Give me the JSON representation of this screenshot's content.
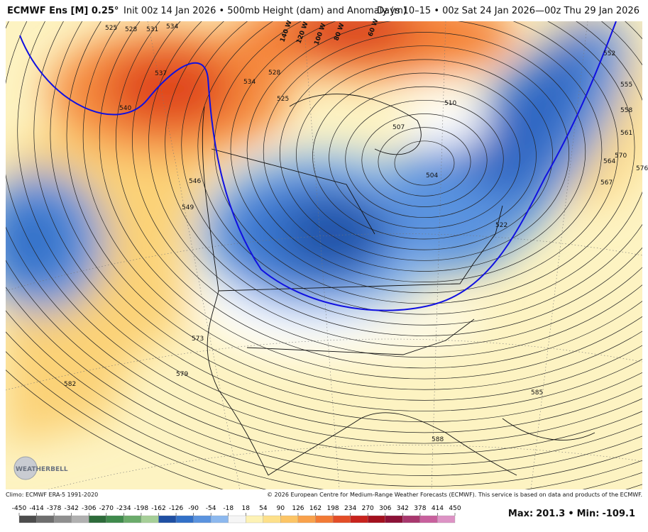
{
  "header": {
    "title": "ECMWF Ens [M] 0.25°",
    "init": "Init 00z 14 Jan 2026 • 500mb Height (dam) and Anomaly (m)",
    "valid": "Days 10–15 • 00z Sat 24 Jan 2026—00z Thu 29 Jan 2026"
  },
  "map": {
    "contour_labels": [
      525,
      528,
      531,
      534,
      537,
      540,
      546,
      549,
      534,
      528,
      525,
      552,
      555,
      558,
      561,
      564,
      567,
      570,
      576,
      510,
      507,
      504,
      522,
      573,
      582,
      579,
      585,
      588
    ],
    "longitude_labels": [
      "140 W",
      "120 W",
      "100 W",
      "80 W",
      "60 W"
    ],
    "logo": "WEATHERBELL"
  },
  "footer": {
    "climo": "Climo: ECMWF ERA-5 1991-2020",
    "copyright": "© 2026 European Centre for Medium-Range Weather Forecasts (ECMWF). This service is based on data and products of the ECMWF."
  },
  "colorbar": {
    "ticks": [
      -450,
      -414,
      -378,
      -342,
      -306,
      -270,
      -234,
      -198,
      -162,
      -126,
      -90,
      -54,
      -18,
      18,
      54,
      90,
      126,
      162,
      198,
      234,
      270,
      306,
      342,
      378,
      414,
      450
    ],
    "colors": [
      "#4d4d4d",
      "#6e6e6e",
      "#8f8f8f",
      "#b0b0b0",
      "#2d6b3a",
      "#3f8a4c",
      "#6aab6a",
      "#a6cf98",
      "#1f4fa3",
      "#3270c8",
      "#5a93df",
      "#8cb8ee",
      "#f5f5f5",
      "#fdf2b5",
      "#fde08a",
      "#fcc565",
      "#f9a14b",
      "#f27a35",
      "#e34d27",
      "#c8231d",
      "#a3101e",
      "#8c1137",
      "#a8376e",
      "#c8609d",
      "#dd93c5"
    ]
  },
  "stats": {
    "max_label": "Max:",
    "max": 201.3,
    "separator": "•",
    "min_label": "Min:",
    "min": -109.1
  }
}
